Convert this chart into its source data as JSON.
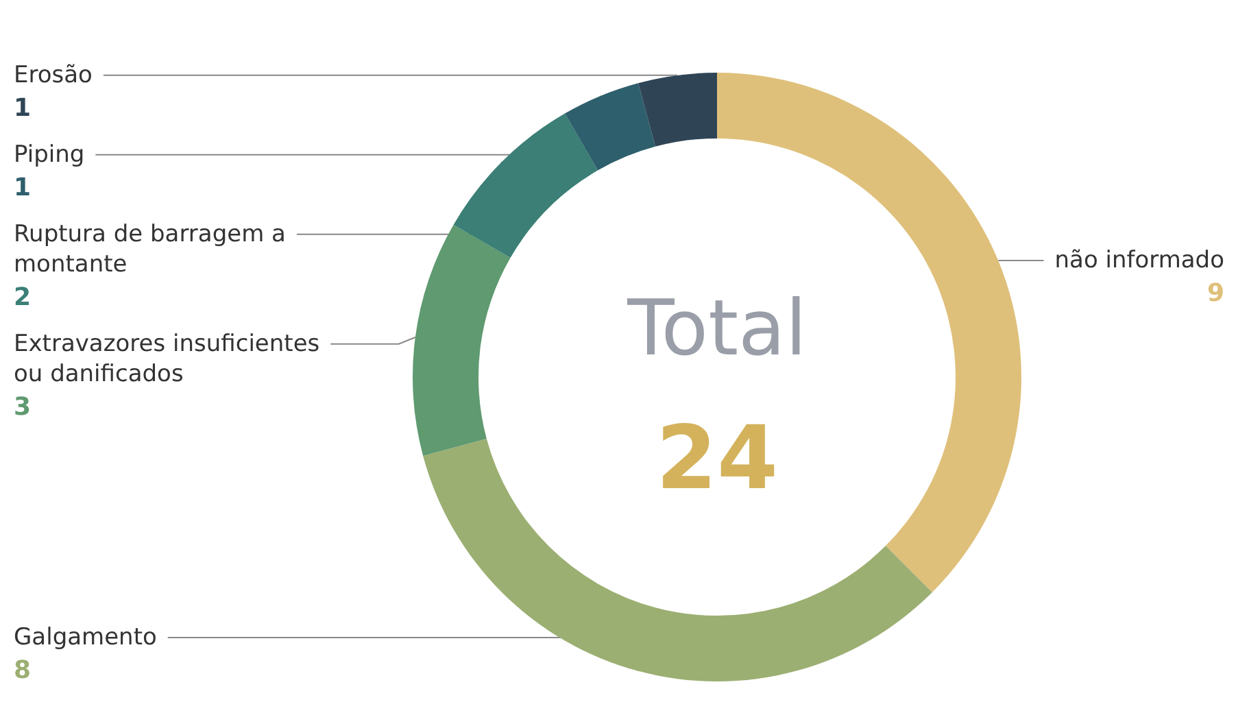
{
  "chart_data": {
    "type": "donut",
    "categories": [
      "não informado",
      "Galgamento",
      "Extravazores insuficientes ou danificados",
      "Ruptura de barragem a montante",
      "Piping",
      "Erosão"
    ],
    "values": [
      9,
      8,
      3,
      2,
      1,
      1
    ],
    "colors": [
      "#dfc07a",
      "#9caf72",
      "#5f9a70",
      "#3b7f76",
      "#2e5f6c",
      "#2f4556"
    ],
    "data_labels": true,
    "annotations": [
      "Total",
      "24"
    ]
  }
}
